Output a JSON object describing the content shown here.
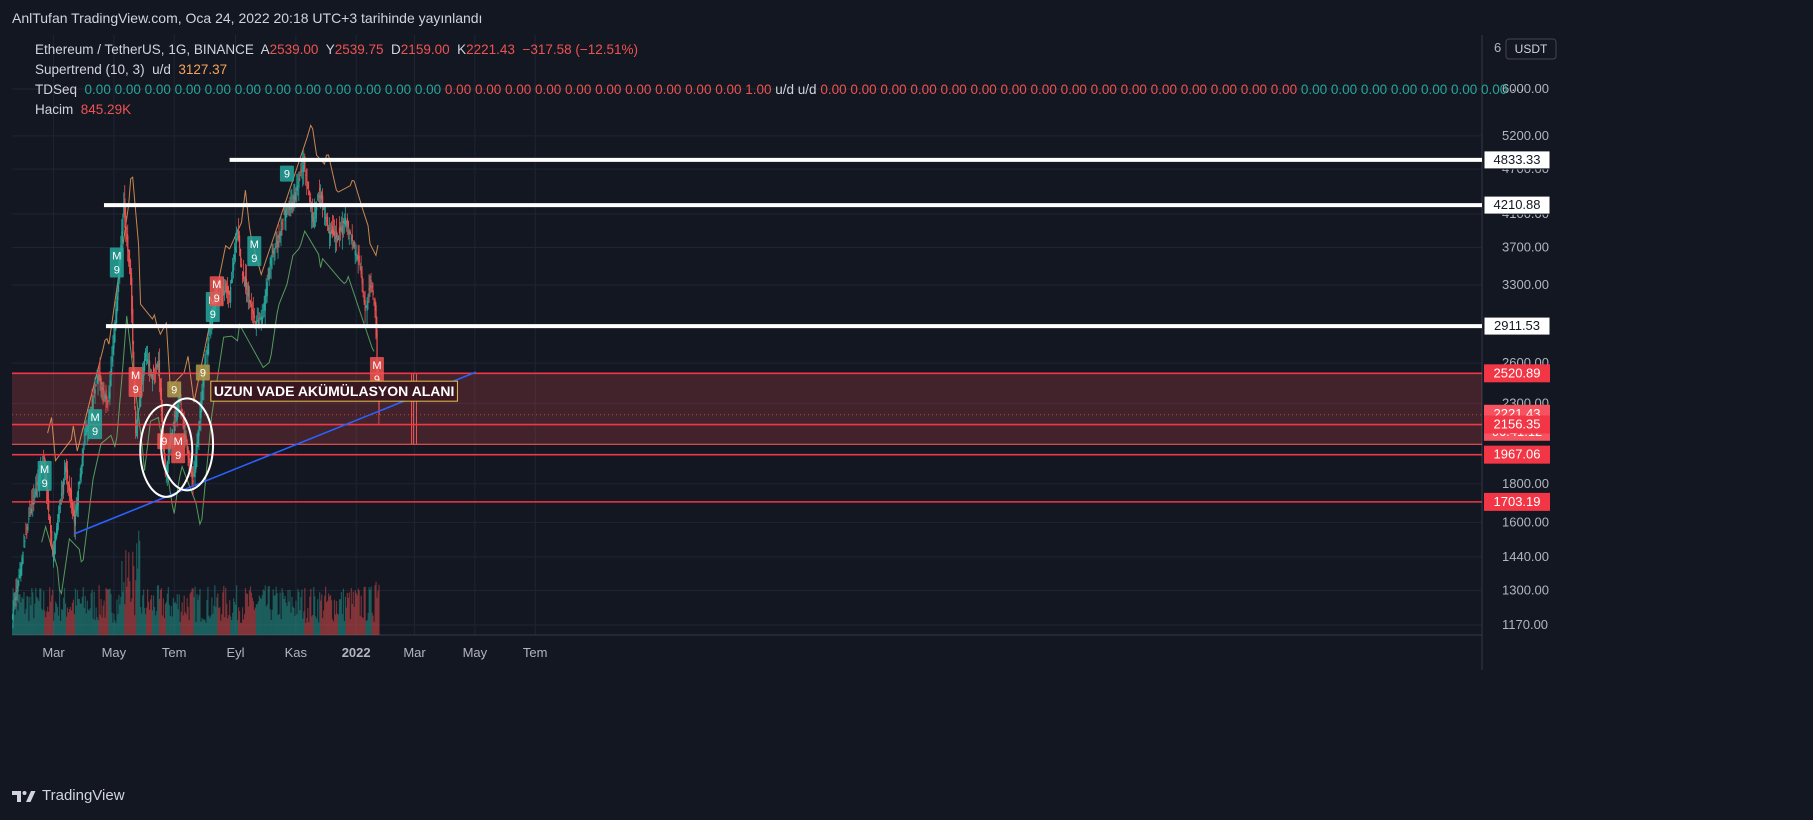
{
  "header": {
    "publish_text": "AnlTufan TradingView.com, Oca 24, 2022 20:18 UTC+3 tarihinde yayınlandı"
  },
  "legend": {
    "symbol": "Ethereum / TetherUS, 1G, BINANCE",
    "open_label": "A",
    "open": "2539.00",
    "high_label": "Y",
    "high": "2539.75",
    "low_label": "D",
    "low": "2159.00",
    "close_label": "K",
    "close": "2221.43",
    "change": "−317.58 (−12.51%)",
    "supertrend_label": "Supertrend (10, 3)",
    "supertrend_ud": "u/d",
    "supertrend_value": "3127.37",
    "tdseq_label": "TDSeq",
    "tdseq_values": [
      "0.00",
      "0.00",
      "0.00",
      "0.00",
      "0.00",
      "0.00",
      "0.00",
      "0.00",
      "0.00",
      "0.00",
      "0.00",
      "0.00",
      "0.00",
      "0.00",
      "0.00",
      "0.00",
      "0.00",
      "0.00",
      "0.00",
      "0.00",
      "0.00",
      "0.00",
      "1.00",
      "u/d",
      "u/d",
      "0.00",
      "0.00",
      "0.00",
      "0.00",
      "0.00",
      "0.00",
      "0.00",
      "0.00",
      "0.00",
      "0.00",
      "0.00",
      "0.00",
      "0.00",
      "0.00",
      "0.00",
      "0.00",
      "0.00",
      "0.00",
      "0.00",
      "0.00",
      "0.00",
      "0.00",
      "0.00"
    ],
    "tdseq_colors": [
      "#26a69a",
      "#26a69a",
      "#26a69a",
      "#26a69a",
      "#26a69a",
      "#26a69a",
      "#26a69a",
      "#26a69a",
      "#26a69a",
      "#26a69a",
      "#26a69a",
      "#26a69a",
      "#ef5350",
      "#ef5350",
      "#ef5350",
      "#ef5350",
      "#ef5350",
      "#ef5350",
      "#ef5350",
      "#ef5350",
      "#ef5350",
      "#ef5350",
      "#ef5350",
      "#d1d4dc",
      "#d1d4dc",
      "#ef5350",
      "#ef5350",
      "#ef5350",
      "#ef5350",
      "#ef5350",
      "#ef5350",
      "#ef5350",
      "#ef5350",
      "#ef5350",
      "#ef5350",
      "#ef5350",
      "#ef5350",
      "#ef5350",
      "#ef5350",
      "#ef5350",
      "#ef5350",
      "#26a69a",
      "#26a69a",
      "#26a69a",
      "#26a69a",
      "#26a69a",
      "#26a69a",
      "#26a69a"
    ],
    "tdseq_more": "···",
    "volume_label": "Hacim",
    "volume_value": "845.29K"
  },
  "chart_data": {
    "type": "candlestick",
    "currency": "USDT",
    "price_scale_ticks": [
      6000,
      5200,
      4700,
      4100,
      3700,
      3300,
      2600,
      2300,
      1800,
      1600,
      1440,
      1300,
      1170
    ],
    "price_scale_top_label": "6",
    "x_labels": [
      "Mar",
      "May",
      "Tem",
      "Eyl",
      "Kas",
      "2022",
      "Mar",
      "May",
      "Tem"
    ],
    "support_resistance_white": [
      4833.33,
      4210.88,
      2911.53
    ],
    "horizontal_levels_red": [
      2520.89,
      2156.35,
      1967.06,
      1703.19
    ],
    "price_labels": [
      {
        "text": "4833.33",
        "style": "white"
      },
      {
        "text": "4210.88",
        "style": "white"
      },
      {
        "text": "2911.53",
        "style": "white"
      },
      {
        "text": "2520.89",
        "style": "red"
      },
      {
        "text": "2221.43",
        "style": "current"
      },
      {
        "text": "06:41:12",
        "style": "current"
      },
      {
        "text": "2156.35",
        "style": "red"
      },
      {
        "text": "1967.06",
        "style": "red"
      },
      {
        "text": "1703.19",
        "style": "red"
      }
    ],
    "zone": {
      "label": "UZUN VADE AKÜMÜLASYON ALANI",
      "top": 2520.89,
      "bottom": 2030
    },
    "trendline": {
      "from_date": "2021-03-22",
      "from_price": 1545,
      "to_date": "2022-05-02",
      "to_price": 2530
    },
    "lastClose": 2221.43,
    "td_markers": [
      {
        "text": "M",
        "sub": "9",
        "date": "2021-02-20",
        "price": 1930,
        "color": "#26a69a"
      },
      {
        "text": "M",
        "sub": "9",
        "date": "2021-04-12",
        "price": 2260,
        "color": "#26a69a"
      },
      {
        "text": "M",
        "sub": "9",
        "date": "2021-05-04",
        "price": 3700,
        "color": "#26a69a"
      },
      {
        "text": "M",
        "sub": "9",
        "date": "2021-05-23",
        "price": 2570,
        "color": "#ef5350"
      },
      {
        "text": "9",
        "sub": "",
        "date": "2021-06-21",
        "price": 2100,
        "color": "#ef5350"
      },
      {
        "text": "9",
        "sub": "",
        "date": "2021-07-01",
        "price": 2460,
        "color": "#b09a4a"
      },
      {
        "text": "M",
        "sub": "9",
        "date": "2021-07-05",
        "price": 2100,
        "color": "#ef5350"
      },
      {
        "text": "9",
        "sub": "",
        "date": "2021-07-30",
        "price": 2590,
        "color": "#b09a4a"
      },
      {
        "text": "M",
        "sub": "9",
        "date": "2021-08-09",
        "price": 3230,
        "color": "#26a69a"
      },
      {
        "text": "M",
        "sub": "9",
        "date": "2021-08-13",
        "price": 3390,
        "color": "#ef5350"
      },
      {
        "text": "M",
        "sub": "9",
        "date": "2021-09-20",
        "price": 3830,
        "color": "#26a69a"
      },
      {
        "text": "9",
        "sub": "",
        "date": "2021-10-23",
        "price": 4750,
        "color": "#26a69a"
      },
      {
        "text": "M",
        "sub": "9",
        "date": "2022-01-22",
        "price": 2650,
        "color": "#ef5350"
      }
    ],
    "ohlc_path": [
      [
        "2021-01-20",
        1250
      ],
      [
        "2021-02-05",
        1650
      ],
      [
        "2021-02-19",
        1950
      ],
      [
        "2021-02-28",
        1450
      ],
      [
        "2021-03-13",
        1900
      ],
      [
        "2021-03-22",
        1600
      ],
      [
        "2021-04-02",
        2100
      ],
      [
        "2021-04-15",
        2500
      ],
      [
        "2021-04-25",
        2300
      ],
      [
        "2021-05-02",
        2950
      ],
      [
        "2021-05-11",
        4200
      ],
      [
        "2021-05-18",
        3300
      ],
      [
        "2021-05-23",
        2100
      ],
      [
        "2021-06-02",
        2700
      ],
      [
        "2021-06-08",
        2500
      ],
      [
        "2021-06-15",
        2600
      ],
      [
        "2021-06-22",
        1850
      ],
      [
        "2021-06-28",
        2100
      ],
      [
        "2021-07-07",
        2350
      ],
      [
        "2021-07-15",
        1950
      ],
      [
        "2021-07-20",
        1800
      ],
      [
        "2021-07-31",
        2550
      ],
      [
        "2021-08-13",
        3300
      ],
      [
        "2021-08-26",
        3200
      ],
      [
        "2021-09-03",
        3900
      ],
      [
        "2021-09-08",
        3400
      ],
      [
        "2021-09-21",
        2950
      ],
      [
        "2021-09-28",
        3000
      ],
      [
        "2021-10-06",
        3550
      ],
      [
        "2021-10-15",
        3800
      ],
      [
        "2021-10-21",
        4150
      ],
      [
        "2021-10-28",
        4250
      ],
      [
        "2021-11-09",
        4800
      ],
      [
        "2021-11-18",
        4000
      ],
      [
        "2021-11-25",
        4400
      ],
      [
        "2021-12-04",
        3900
      ],
      [
        "2021-12-13",
        3800
      ],
      [
        "2021-12-21",
        4050
      ],
      [
        "2021-12-30",
        3700
      ],
      [
        "2022-01-05",
        3500
      ],
      [
        "2022-01-10",
        3050
      ],
      [
        "2022-01-16",
        3350
      ],
      [
        "2022-01-20",
        3050
      ],
      [
        "2022-01-24",
        2221
      ]
    ]
  }
}
